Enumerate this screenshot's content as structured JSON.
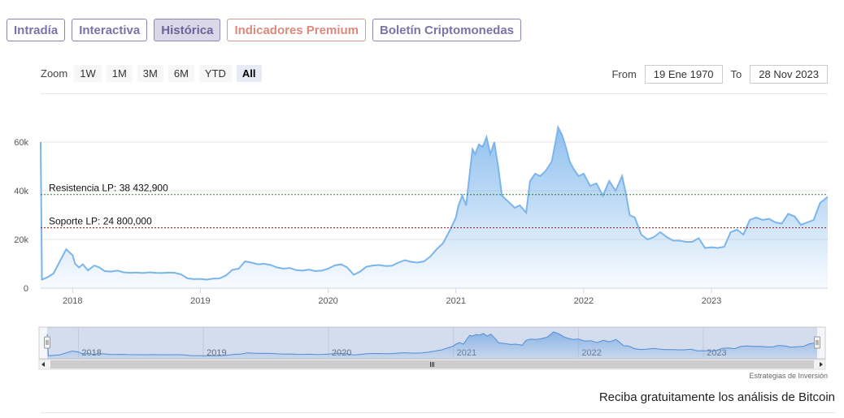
{
  "tabs": [
    {
      "label": "Intradía",
      "active": false
    },
    {
      "label": "Interactiva",
      "active": false
    },
    {
      "label": "Histórica",
      "active": true
    },
    {
      "label": "Indicadores Premium",
      "active": false
    },
    {
      "label": "Boletín Criptomonedas",
      "active": false
    }
  ],
  "zoom": {
    "label": "Zoom",
    "buttons": [
      "1W",
      "1M",
      "3M",
      "6M",
      "YTD",
      "All"
    ],
    "selected": "All"
  },
  "range": {
    "from_label": "From",
    "from_value": "19 Ene 1970",
    "to_label": "To",
    "to_value": "28 Nov 2023"
  },
  "credit": "Estrategias de Inversión",
  "cta": "Reciba gratuitamente los análisis de Bitcoin",
  "colors": {
    "series": "#7cb5ec",
    "resistance": "#2e7d32",
    "support": "#8b1a1a"
  },
  "chart_data": {
    "type": "area",
    "x_unit": "year",
    "ylim": [
      0,
      60000
    ],
    "y_ticks": [
      {
        "value": 0,
        "label": "0"
      },
      {
        "value": 20000,
        "label": "20k"
      },
      {
        "value": 40000,
        "label": "40k"
      },
      {
        "value": 60000,
        "label": "60k"
      }
    ],
    "x_ticks": [
      {
        "value": 2018,
        "label": "2018"
      },
      {
        "value": 2019,
        "label": "2019"
      },
      {
        "value": 2020,
        "label": "2020"
      },
      {
        "value": 2021,
        "label": "2021"
      },
      {
        "value": 2022,
        "label": "2022"
      },
      {
        "value": 2023,
        "label": "2023"
      }
    ],
    "xlim": [
      2017.75,
      2023.91
    ],
    "reference_lines": [
      {
        "label": "Resistencia LP: 38 432,900",
        "value": 38433,
        "style": "resistance"
      },
      {
        "label": "Soporte LP: 24 800,000",
        "value": 24800,
        "style": "support"
      }
    ],
    "series": [
      {
        "x": [
          2017.75,
          2017.76,
          2017.8,
          2017.85,
          2017.9,
          2017.95,
          2018.0,
          2018.02,
          2018.05,
          2018.08,
          2018.12,
          2018.17,
          2018.21,
          2018.25,
          2018.3,
          2018.35,
          2018.4,
          2018.45,
          2018.5,
          2018.55,
          2018.6,
          2018.65,
          2018.7,
          2018.75,
          2018.8,
          2018.85,
          2018.9,
          2018.95,
          2019.0,
          2019.05,
          2019.1,
          2019.15,
          2019.2,
          2019.25,
          2019.3,
          2019.35,
          2019.4,
          2019.45,
          2019.5,
          2019.55,
          2019.6,
          2019.65,
          2019.7,
          2019.75,
          2019.8,
          2019.85,
          2019.9,
          2019.95,
          2020.0,
          2020.05,
          2020.1,
          2020.15,
          2020.2,
          2020.25,
          2020.3,
          2020.35,
          2020.4,
          2020.45,
          2020.5,
          2020.55,
          2020.6,
          2020.65,
          2020.7,
          2020.75,
          2020.8,
          2020.85,
          2020.9,
          2020.95,
          2021.0,
          2021.02,
          2021.05,
          2021.08,
          2021.11,
          2021.13,
          2021.15,
          2021.18,
          2021.21,
          2021.24,
          2021.27,
          2021.3,
          2021.33,
          2021.36,
          2021.38,
          2021.42,
          2021.46,
          2021.5,
          2021.55,
          2021.58,
          2021.62,
          2021.66,
          2021.7,
          2021.75,
          2021.78,
          2021.8,
          2021.83,
          2021.86,
          2021.89,
          2021.92,
          2021.96,
          2022.0,
          2022.05,
          2022.1,
          2022.15,
          2022.2,
          2022.25,
          2022.3,
          2022.33,
          2022.36,
          2022.4,
          2022.45,
          2022.5,
          2022.55,
          2022.6,
          2022.65,
          2022.7,
          2022.75,
          2022.8,
          2022.85,
          2022.9,
          2022.95,
          2023.0,
          2023.05,
          2023.1,
          2023.15,
          2023.2,
          2023.25,
          2023.3,
          2023.35,
          2023.4,
          2023.45,
          2023.5,
          2023.55,
          2023.6,
          2023.65,
          2023.7,
          2023.75,
          2023.8,
          2023.85,
          2023.91
        ],
        "y": [
          60000,
          3500,
          4400,
          6000,
          11000,
          16000,
          13500,
          10000,
          8500,
          9800,
          7300,
          9300,
          8500,
          7000,
          6800,
          7200,
          6500,
          6300,
          6400,
          6200,
          6500,
          6300,
          6200,
          6400,
          6300,
          5600,
          4000,
          3700,
          3800,
          3500,
          3900,
          4000,
          5200,
          7500,
          8000,
          11000,
          10500,
          9800,
          10000,
          9500,
          8500,
          8000,
          8300,
          7400,
          7200,
          7600,
          7000,
          7200,
          8000,
          9300,
          9800,
          8500,
          5500,
          6800,
          8800,
          9300,
          9500,
          9100,
          9200,
          10500,
          11500,
          10800,
          10500,
          11000,
          13000,
          16000,
          18500,
          23500,
          29000,
          34000,
          38000,
          34000,
          48000,
          57000,
          55000,
          59000,
          58000,
          62000,
          55000,
          60000,
          50000,
          38000,
          37000,
          35000,
          33000,
          34000,
          31000,
          44000,
          47000,
          46000,
          48000,
          52000,
          60000,
          66000,
          63000,
          58000,
          52000,
          49000,
          46000,
          47000,
          42000,
          43000,
          38000,
          44000,
          40000,
          46000,
          39000,
          30000,
          29000,
          22000,
          20000,
          21000,
          23000,
          21000,
          19500,
          19500,
          19000,
          19000,
          20500,
          16500,
          16800,
          16500,
          17000,
          23000,
          24000,
          22000,
          28000,
          29000,
          28000,
          28500,
          27000,
          26500,
          30500,
          29500,
          26000,
          27000,
          28000,
          35000,
          37500
        ]
      }
    ],
    "navigator": {
      "x_ticks": [
        "2018",
        "2019",
        "2020",
        "2021",
        "2022",
        "2023"
      ]
    }
  }
}
